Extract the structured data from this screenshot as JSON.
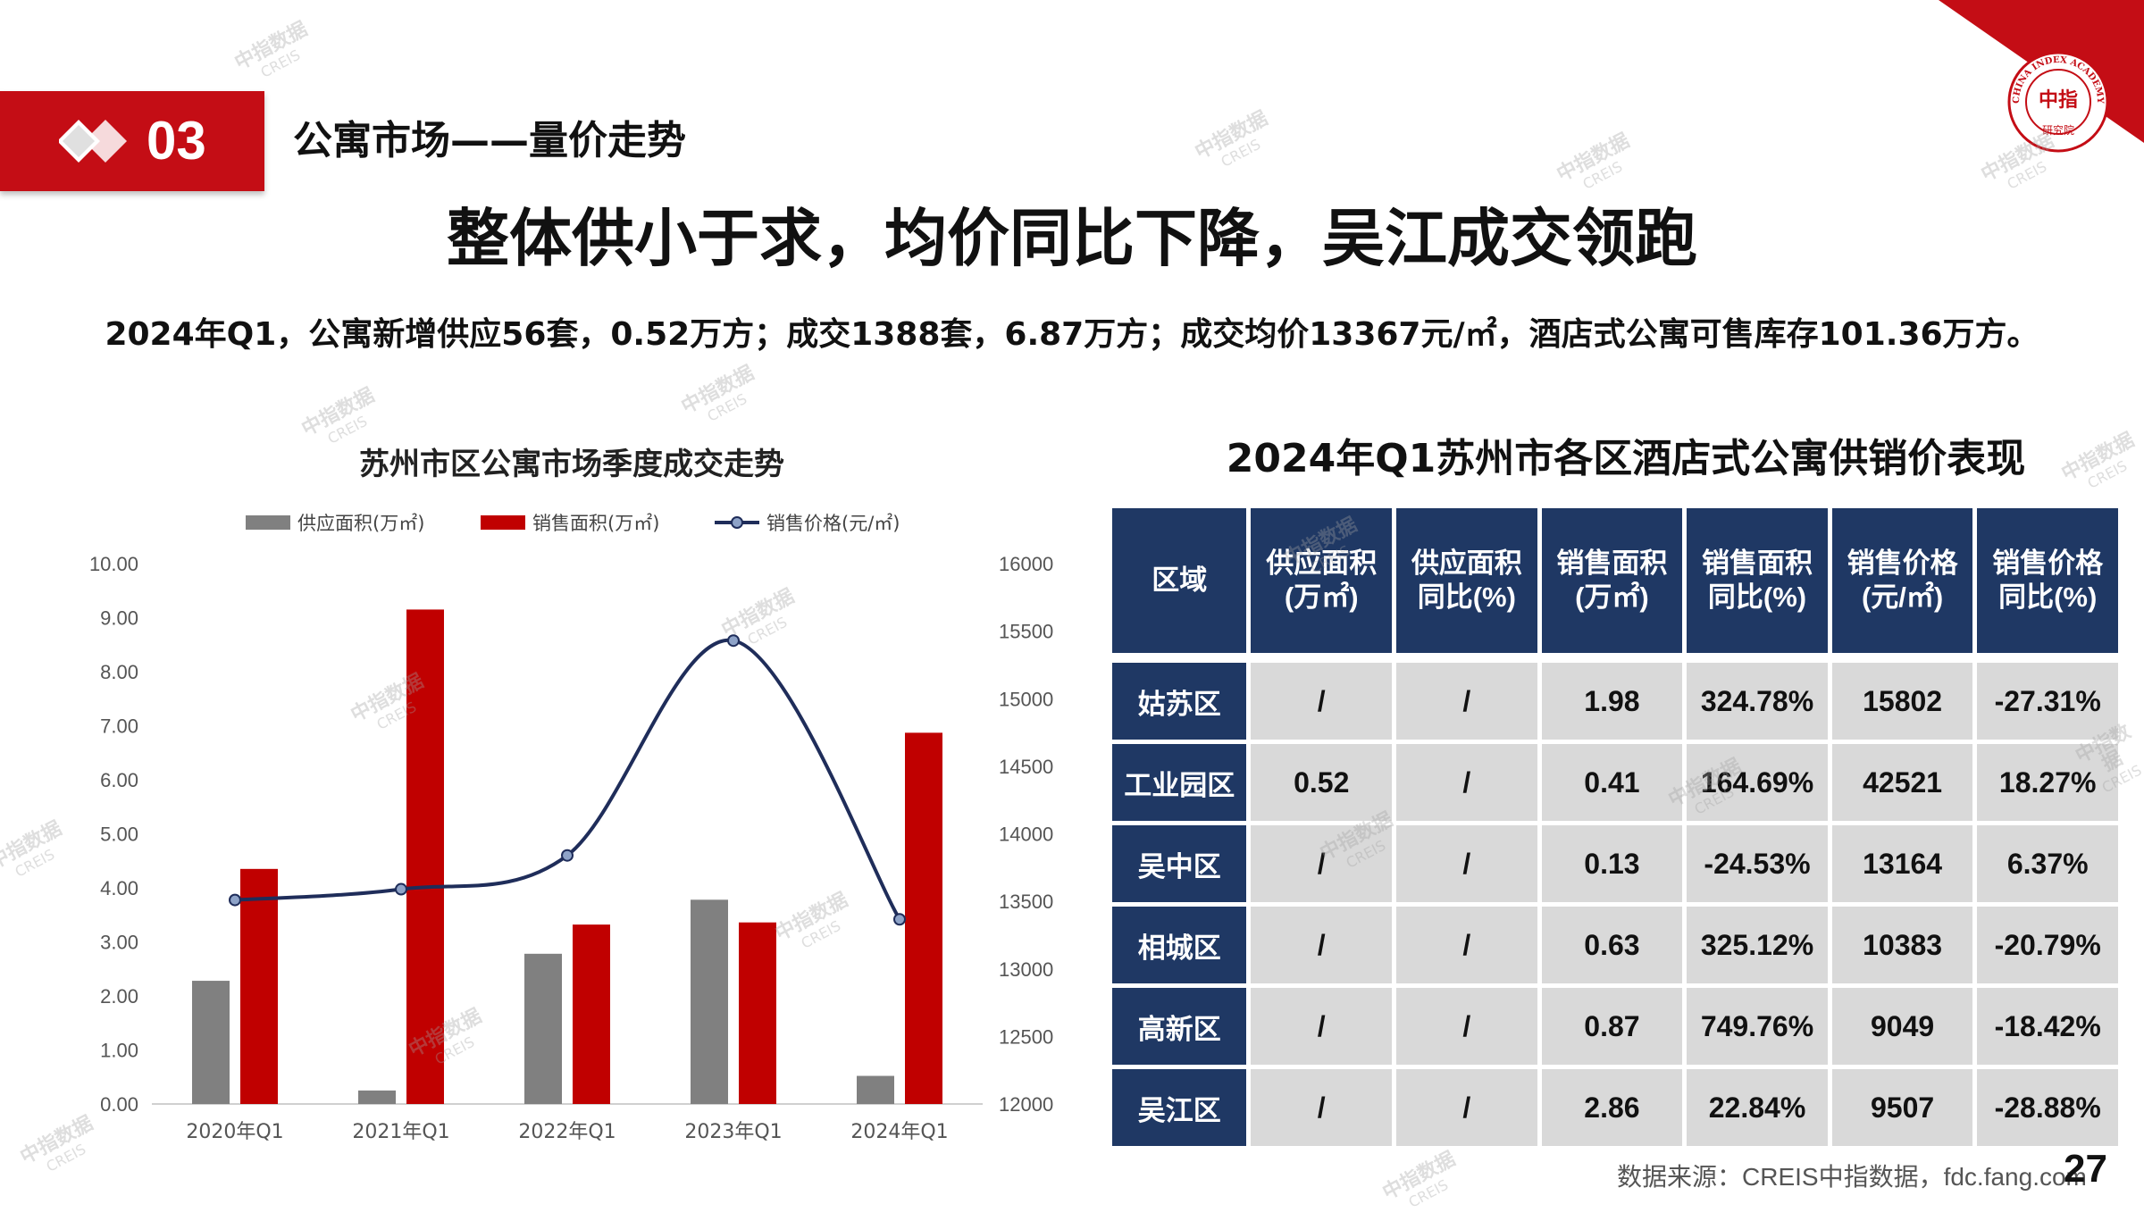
{
  "section": {
    "number": "03",
    "title": "公寓市场——量价走势"
  },
  "main_title": "整体供小于求，均价同比下降，吴江成交领跑",
  "summary": "2024年Q1，公寓新增供应56套，0.52万方；成交1388套，6.87万方；成交均价13367元/㎡，酒店式公寓可售库存101.36万方。",
  "watermark": {
    "cn": "中指数据",
    "en": "CREIS"
  },
  "logo": {
    "top_text": "CHINA INDEX ACADEMY",
    "center": "中指",
    "bottom": "研究院"
  },
  "colors": {
    "supply": "#808080",
    "sales": "#c00000",
    "price": "#1f2d5a",
    "brand_red": "#c40d15",
    "table_head": "#1f3864"
  },
  "chart_data": {
    "type": "bar",
    "title": "苏州市区公寓市场季度成交走势",
    "categories": [
      "2020年Q1",
      "2021年Q1",
      "2022年Q1",
      "2023年Q1",
      "2024年Q1"
    ],
    "series": [
      {
        "name": "供应面积(万㎡)",
        "type": "bar",
        "axis": "left",
        "values": [
          2.28,
          0.25,
          2.78,
          3.78,
          0.52
        ]
      },
      {
        "name": "销售面积(万㎡)",
        "type": "bar",
        "axis": "left",
        "values": [
          4.35,
          9.15,
          3.32,
          3.36,
          6.87
        ]
      },
      {
        "name": "销售价格(元/㎡)",
        "type": "line",
        "axis": "right",
        "smooth": true,
        "values": [
          13510,
          13590,
          13840,
          15430,
          13367
        ]
      }
    ],
    "y_left": {
      "lim": [
        0,
        10
      ],
      "ticks": [
        "0.00",
        "1.00",
        "2.00",
        "3.00",
        "4.00",
        "5.00",
        "6.00",
        "7.00",
        "8.00",
        "9.00",
        "10.00"
      ]
    },
    "y_right": {
      "lim": [
        12000,
        16000
      ],
      "ticks": [
        "12000",
        "12500",
        "13000",
        "13500",
        "14000",
        "14500",
        "15000",
        "15500",
        "16000"
      ]
    },
    "legend_position": "top",
    "grid": false
  },
  "table": {
    "title": "2024年Q1苏州市各区酒店式公寓供销价表现",
    "headers": [
      [
        "区域"
      ],
      [
        "供应面积",
        "(万㎡)"
      ],
      [
        "供应面积",
        "同比(%)"
      ],
      [
        "销售面积",
        "(万㎡)"
      ],
      [
        "销售面积",
        "同比(%)"
      ],
      [
        "销售价格",
        "(元/㎡)"
      ],
      [
        "销售价格",
        "同比(%)"
      ]
    ],
    "rows": [
      [
        "姑苏区",
        "/",
        "/",
        "1.98",
        "324.78%",
        "15802",
        "-27.31%"
      ],
      [
        "工业园区",
        "0.52",
        "/",
        "0.41",
        "164.69%",
        "42521",
        "18.27%"
      ],
      [
        "吴中区",
        "/",
        "/",
        "0.13",
        "-24.53%",
        "13164",
        "6.37%"
      ],
      [
        "相城区",
        "/",
        "/",
        "0.63",
        "325.12%",
        "10383",
        "-20.79%"
      ],
      [
        "高新区",
        "/",
        "/",
        "0.87",
        "749.76%",
        "9049",
        "-18.42%"
      ],
      [
        "吴江区",
        "/",
        "/",
        "2.86",
        "22.84%",
        "9507",
        "-28.88%"
      ]
    ]
  },
  "source": "数据来源：CREIS中指数据，fdc.fang.com",
  "page_number": "27"
}
